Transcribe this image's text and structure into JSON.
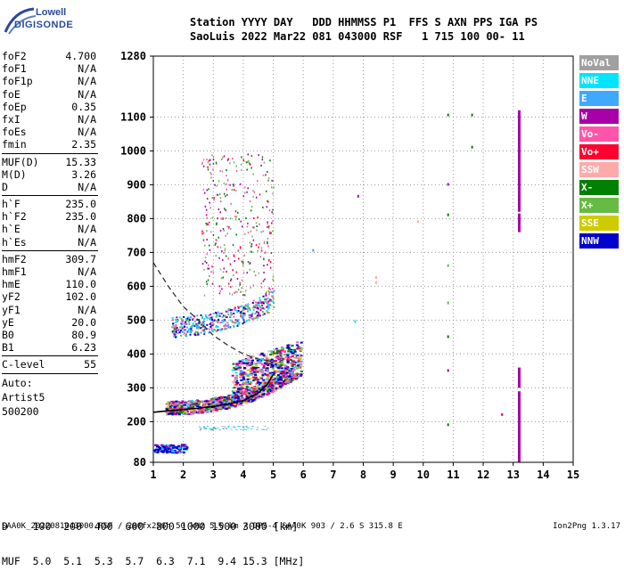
{
  "logo": {
    "line1": "Lowell",
    "line2": "DIGISONDE"
  },
  "header": {
    "line1": "Station YYYY DAY   DDD HHMMSS P1  FFS S AXN PPS IGA PS",
    "line2": "SaoLuis 2022 Mar22 081 043000 RSF   1 715 100 00- 11"
  },
  "params_group1": [
    {
      "label": "foF2",
      "value": "4.700"
    },
    {
      "label": "foF1",
      "value": "N/A"
    },
    {
      "label": "foF1p",
      "value": "N/A"
    },
    {
      "label": "foE",
      "value": "N/A"
    },
    {
      "label": "foEp",
      "value": "0.35"
    },
    {
      "label": "fxI",
      "value": "N/A"
    },
    {
      "label": "foEs",
      "value": "N/A"
    },
    {
      "label": "fmin",
      "value": "2.35"
    }
  ],
  "params_group2": [
    {
      "label": "MUF(D)",
      "value": "15.33"
    },
    {
      "label": "M(D)",
      "value": "3.26"
    },
    {
      "label": "D",
      "value": "N/A"
    }
  ],
  "params_group3": [
    {
      "label": "h`F",
      "value": "235.0"
    },
    {
      "label": "h`F2",
      "value": "235.0"
    },
    {
      "label": "h`E",
      "value": "N/A"
    },
    {
      "label": "h`Es",
      "value": "N/A"
    }
  ],
  "params_group4": [
    {
      "label": "hmF2",
      "value": "309.7"
    },
    {
      "label": "hmF1",
      "value": "N/A"
    },
    {
      "label": "hmE",
      "value": "110.0"
    },
    {
      "label": "yF2",
      "value": "102.0"
    },
    {
      "label": "yF1",
      "value": "N/A"
    },
    {
      "label": "yE",
      "value": "20.0"
    },
    {
      "label": "B0",
      "value": "80.9"
    },
    {
      "label": "B1",
      "value": "6.23"
    }
  ],
  "params_group5": [
    {
      "label": "C-level",
      "value": "55"
    }
  ],
  "auto": {
    "line1": "Auto:",
    "line2": "Artist5",
    "line3": "500200"
  },
  "legend": [
    {
      "label": "NoVal",
      "color": "#a0a0a0"
    },
    {
      "label": "NNE",
      "color": "#00e5ff"
    },
    {
      "label": "E",
      "color": "#3fa9ff"
    },
    {
      "label": "W",
      "color": "#a800a8"
    },
    {
      "label": "Vo-",
      "color": "#ff55a8"
    },
    {
      "label": "Vo+",
      "color": "#ff0030"
    },
    {
      "label": "SSW",
      "color": "#ffaaaa"
    },
    {
      "label": "X-",
      "color": "#008000"
    },
    {
      "label": "X+",
      "color": "#66bb44"
    },
    {
      "label": "SSE",
      "color": "#cccc00"
    },
    {
      "label": "NNW",
      "color": "#0000cc"
    }
  ],
  "table": {
    "line1": "D    100  200  400  600  800 1000 1500 3000 [km]",
    "line2": "MUF  5.0  5.1  5.3  5.7  6.3  7.1  9.4 15.3 [MHz]"
  },
  "footer": {
    "left": "SAA0K_2022081043000.RSF / 280fx256h 50 kHz 5.0 km / DPS-4 SAA0K 903 / 2.6 S 315.8 E",
    "right": "Ion2Png 1.3.17"
  },
  "chart_data": {
    "type": "scatter",
    "x_ticks": [
      "1",
      "2",
      "3",
      "4",
      "5",
      "6",
      "7",
      "8",
      "9",
      "10",
      "11",
      "12",
      "13",
      "14",
      "15"
    ],
    "y_ticks": [
      "80",
      "200",
      "300",
      "400",
      "500",
      "600",
      "700",
      "800",
      "900",
      "1000",
      "1100",
      "1280"
    ],
    "xlim": [
      1,
      15
    ],
    "ylim": [
      80,
      1280
    ],
    "grid": true,
    "trace": {
      "name": "",
      "points": [
        [
          1.0,
          228
        ],
        [
          1.5,
          232
        ],
        [
          2.0,
          236
        ],
        [
          2.5,
          240
        ],
        [
          3.0,
          245
        ],
        [
          3.5,
          252
        ],
        [
          4.0,
          262
        ],
        [
          4.5,
          285
        ],
        [
          4.8,
          310
        ],
        [
          5.0,
          340
        ]
      ]
    },
    "dashed_curve": {
      "points": [
        [
          1.0,
          670
        ],
        [
          1.5,
          600
        ],
        [
          2.0,
          540
        ],
        [
          2.5,
          500
        ],
        [
          3.0,
          455
        ],
        [
          3.5,
          425
        ],
        [
          4.0,
          400
        ],
        [
          4.5,
          385
        ],
        [
          5.0,
          378
        ]
      ]
    },
    "vertical_bars": [
      {
        "x": 13.2,
        "y0": 820,
        "y1": 1120,
        "color": "#a800a8"
      },
      {
        "x": 13.2,
        "y0": 760,
        "y1": 815,
        "color": "#a800a8"
      },
      {
        "x": 13.2,
        "y0": 300,
        "y1": 360,
        "color": "#a800a8"
      },
      {
        "x": 13.2,
        "y0": 80,
        "y1": 290,
        "color": "#a800a8"
      }
    ]
  }
}
